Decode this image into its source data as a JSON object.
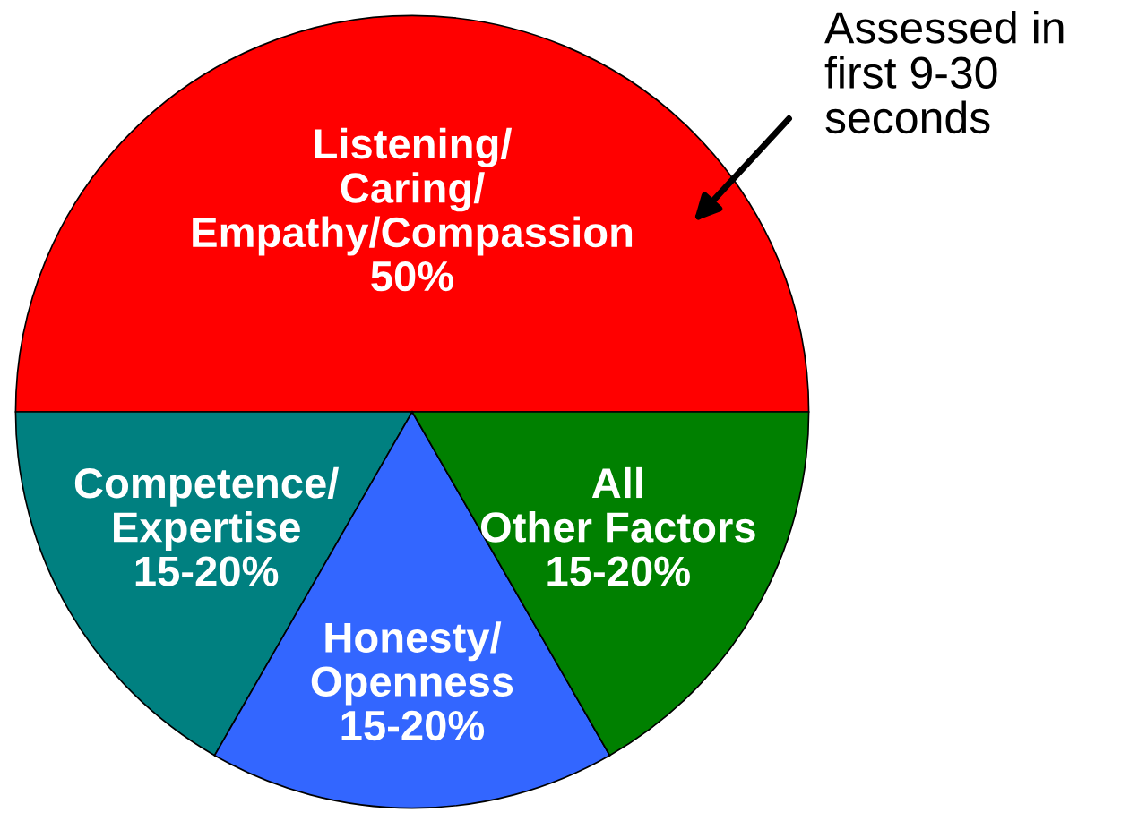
{
  "chart_data": {
    "type": "pie",
    "categories": [
      "Listening/\nCaring/\nEmpathy/Compassion\n50%",
      "Competence/\nExpertise\n15-20%",
      "Honesty/\nOpenness\n15-20%",
      "All\nOther Factors\n15-20%"
    ],
    "values": [
      50,
      16.7,
      16.6,
      16.7
    ],
    "colors": [
      "#ff0000",
      "#008080",
      "#3366ff",
      "#008000"
    ],
    "annotations": [
      "Assessed in\nfirst 9-30\nseconds"
    ]
  }
}
